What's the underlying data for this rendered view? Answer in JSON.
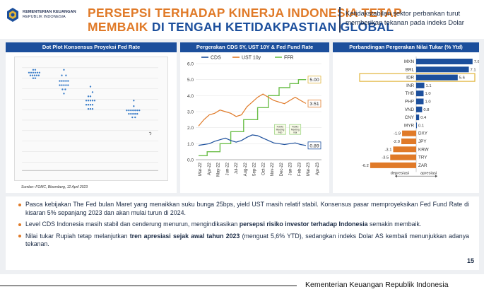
{
  "header": {
    "ministry_line1": "KEMENTERIAN KEUANGAN",
    "ministry_line2": "REPUBLIK INDONESIA",
    "title_line1": "PERSEPSI TERHADAP KINERJA INDONESIA TETAP",
    "title_line2_a": "MEMBAIK ",
    "title_line2_b": "DI TENGAH KETIDAKPASTIAN GLOBAL",
    "subtitle": "Ketidakstabilan sektor perbankan turut memberikan tekanan pada indeks Dolar"
  },
  "panels": {
    "dot_plot": {
      "title": "Dot Plot Konsensus Proyeksi Fed Rate",
      "source": "Sumber: FOMC, Bloomberg, 12 April 2023"
    },
    "line_chart": {
      "title": "Pergerakan CDS 5Y, UST 10Y & Fed Fund Rate"
    },
    "fx_chart": {
      "title": "Perbandingan Pergerakan Nilai Tukar (% Ytd)"
    }
  },
  "chart_data": [
    {
      "type": "line",
      "series": [
        {
          "name": "CDS",
          "color": "#1c4f9c",
          "last_value": 0.89
        },
        {
          "name": "UST 10y",
          "color": "#e07a28",
          "last_value": 3.51
        },
        {
          "name": "FFR",
          "color": "#6cbf4a",
          "last_value": 5.0
        }
      ],
      "x_ticks": [
        "Mar-22",
        "Apr-22",
        "May-22",
        "Jun-22",
        "Jul-22",
        "Aug-22",
        "Sep-22",
        "Oct-22",
        "Nov-22",
        "Dec-22",
        "Jan-23",
        "Feb-23",
        "Mar-23",
        "Apr-23"
      ],
      "y_ticks": [
        0.0,
        1.0,
        2.0,
        3.0,
        4.0,
        5.0,
        6.0
      ],
      "ylim": [
        0,
        6
      ],
      "value_labels": [
        "5.00",
        "3.51",
        "0.89"
      ],
      "annotations": [
        "FOMC Meeting Feb",
        "FOMC Meeting mar"
      ]
    },
    {
      "type": "bar",
      "orientation": "horizontal",
      "categories": [
        "MXN",
        "BRL",
        "IDR",
        "INR",
        "THB",
        "PHP",
        "VND",
        "CNY",
        "MYR",
        "DXY",
        "JPY",
        "KRW",
        "TRY",
        "ZAR"
      ],
      "values": [
        7.6,
        7.1,
        5.6,
        1.1,
        1.0,
        1.0,
        0.8,
        0.4,
        0.1,
        -1.9,
        -2.0,
        -3.1,
        -3.5,
        -6.2
      ],
      "highlight": "IDR",
      "positive_color": "#1c4f9c",
      "negative_color": "#e07a28",
      "legend_left": "depresiasi",
      "legend_right": "apresiasi"
    }
  ],
  "bullets": [
    {
      "text": "Pasca kebijakan The Fed bulan Maret yang menaikkan suku bunga 25bps, yield UST masih relatif stabil. Konsensus pasar memproyeksikan Fed Fund Rate di kisaran 5% sepanjang 2023 dan akan mulai turun di 2024."
    },
    {
      "pre": "Level CDS Indonesia masih stabil dan cenderung menurun, mengindikasikan ",
      "bold": "persepsi risiko investor terhadap Indonesia",
      "post": " semakin membaik."
    },
    {
      "pre": "Nilai tukar Rupiah tetap melanjutkan ",
      "bold": "tren apresiasi sejak awal tahun 2023",
      "post": " (menguat 5,6% YTD), sedangkan indeks Dolar AS kembali menunjukkan adanya tekanan."
    }
  ],
  "page_number": "15",
  "footer": "Kementerian Keuangan Republik Indonesia"
}
